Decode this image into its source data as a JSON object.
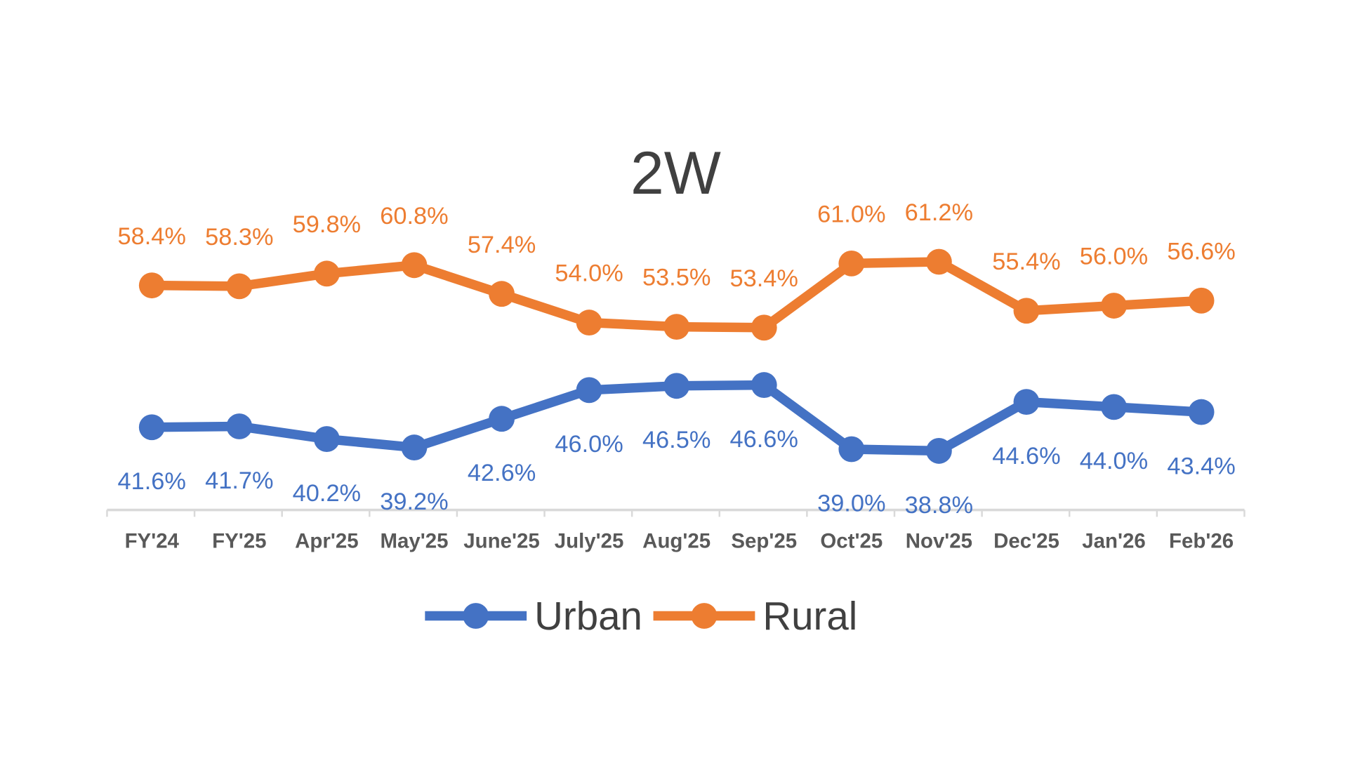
{
  "chart_data": {
    "type": "line",
    "title": "2W",
    "categories": [
      "FY'24",
      "FY'25",
      "Apr'25",
      "May'25",
      "June'25",
      "July'25",
      "Aug'25",
      "Sep'25",
      "Oct'25",
      "Nov'25",
      "Dec'25",
      "Jan'26",
      "Feb'26"
    ],
    "series": [
      {
        "name": "Urban",
        "color": "#4472C4",
        "values": [
          41.6,
          41.7,
          40.2,
          39.2,
          42.6,
          46.0,
          46.5,
          46.6,
          39.0,
          38.8,
          44.6,
          44.0,
          43.4
        ],
        "labels": [
          "41.6%",
          "41.7%",
          "40.2%",
          "39.2%",
          "42.6%",
          "46.0%",
          "46.5%",
          "46.6%",
          "39.0%",
          "38.8%",
          "44.6%",
          "44.0%",
          "43.4%"
        ]
      },
      {
        "name": "Rural",
        "color": "#ED7D31",
        "values": [
          58.4,
          58.3,
          59.8,
          60.8,
          57.4,
          54.0,
          53.5,
          53.4,
          61.0,
          61.2,
          55.4,
          56.0,
          56.6
        ],
        "labels": [
          "58.4%",
          "58.3%",
          "59.8%",
          "60.8%",
          "57.4%",
          "54.0%",
          "53.5%",
          "53.4%",
          "61.0%",
          "61.2%",
          "55.4%",
          "56.0%",
          "56.6%"
        ]
      }
    ],
    "xlabel": "",
    "ylabel": "",
    "y_axis_visible": false,
    "grid": false,
    "legend_position": "bottom",
    "axis_color": "#D9D9D9"
  }
}
